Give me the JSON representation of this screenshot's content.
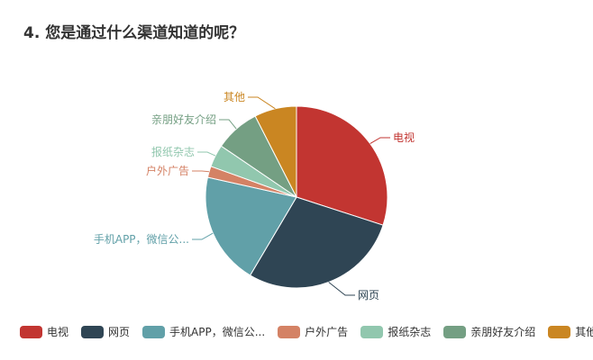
{
  "chart_data": {
    "type": "pie",
    "title": "4. 您是通过什么渠道知道的呢？",
    "legend_position": "bottom",
    "slices": [
      {
        "label": "电视",
        "value": 30.0,
        "color": "#c23531"
      },
      {
        "label": "网页",
        "value": 28.5,
        "color": "#2f4554"
      },
      {
        "label": "手机APP，微信公...",
        "value": 20.0,
        "color": "#61a0a8"
      },
      {
        "label": "户外广告",
        "value": 2.0,
        "color": "#d48265"
      },
      {
        "label": "报纸杂志",
        "value": 4.0,
        "color": "#91c7ae"
      },
      {
        "label": "亲朋好友介绍",
        "value": 8.0,
        "color": "#749f83"
      },
      {
        "label": "其他",
        "value": 7.5,
        "color": "#ca8622"
      }
    ]
  }
}
